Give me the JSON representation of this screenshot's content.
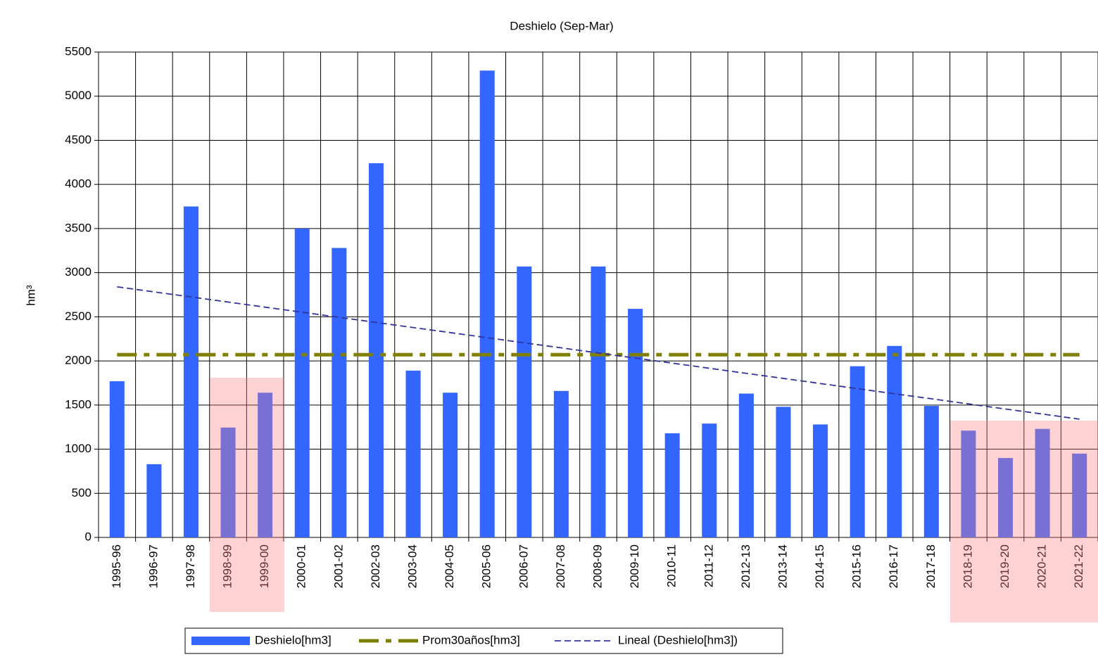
{
  "chart_data": {
    "type": "bar",
    "title": "Deshielo (Sep-Mar)",
    "y_label": "hm³",
    "categories": [
      "1995-96",
      "1996-97",
      "1997-98",
      "1998-99",
      "1999-00",
      "2000-01",
      "2001-02",
      "2002-03",
      "2003-04",
      "2004-05",
      "2005-06",
      "2006-07",
      "2007-08",
      "2008-09",
      "2009-10",
      "2010-11",
      "2011-12",
      "2012-13",
      "2013-14",
      "2014-15",
      "2015-16",
      "2016-17",
      "2017-18",
      "2018-19",
      "2019-20",
      "2020-21",
      "2021-22"
    ],
    "series": [
      {
        "name": "Deshielo[hm3]",
        "kind": "bar",
        "color": "#3366ff",
        "values": [
          1770,
          830,
          3750,
          1245,
          1640,
          3500,
          3280,
          4240,
          1890,
          1640,
          5290,
          3070,
          1660,
          3070,
          2590,
          1180,
          1290,
          1630,
          1480,
          1280,
          1940,
          2170,
          1490,
          1210,
          900,
          1230,
          950
        ]
      },
      {
        "name": "Prom30años[hm3]",
        "kind": "dashdot",
        "color": "#808000",
        "values": [
          2070,
          2070,
          2070,
          2070,
          2070,
          2070,
          2070,
          2070,
          2070,
          2070,
          2070,
          2070,
          2070,
          2070,
          2070,
          2070,
          2070,
          2070,
          2070,
          2070,
          2070,
          2070,
          2070,
          2070,
          2070,
          2070,
          2070
        ]
      },
      {
        "name": "Lineal (Deshielo[hm3])",
        "kind": "dashed",
        "color": "#333399",
        "values": [
          2840,
          2782,
          2725,
          2667,
          2609,
          2552,
          2494,
          2436,
          2378,
          2321,
          2263,
          2205,
          2148,
          2090,
          2032,
          1975,
          1917,
          1859,
          1802,
          1744,
          1686,
          1628,
          1571,
          1513,
          1455,
          1398,
          1340
        ]
      }
    ],
    "ylim": [
      0,
      5500
    ],
    "yticks": [
      0,
      500,
      1000,
      1500,
      2000,
      2500,
      3000,
      3500,
      4000,
      4500,
      5000,
      5500
    ],
    "grid": true,
    "legend": "bottom"
  }
}
